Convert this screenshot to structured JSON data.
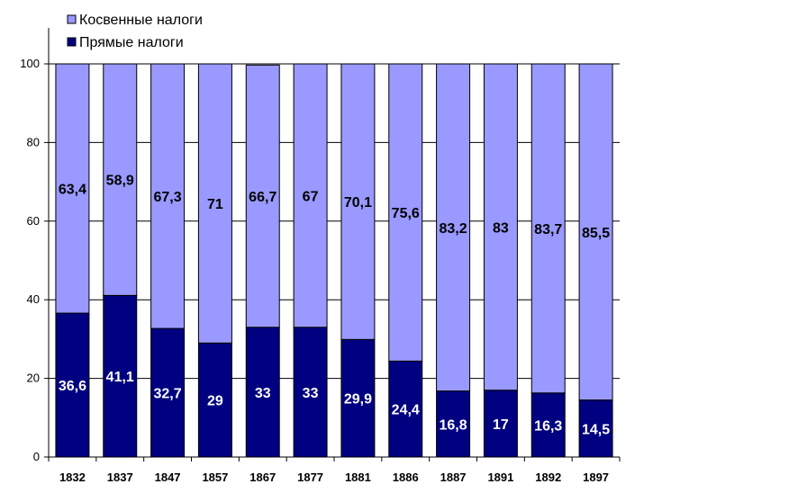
{
  "chart_data": {
    "type": "bar",
    "stacked": true,
    "categories": [
      "1832",
      "1837",
      "1847",
      "1857",
      "1867",
      "1877",
      "1881",
      "1886",
      "1887",
      "1891",
      "1892",
      "1897"
    ],
    "series": [
      {
        "name": "Прямые налоги",
        "color": "#000080",
        "values": [
          36.6,
          41.1,
          32.7,
          29,
          33,
          33,
          29.9,
          24.4,
          16.8,
          17,
          16.3,
          14.5
        ],
        "labels": [
          "36,6",
          "41,1",
          "32,7",
          "29",
          "33",
          "33",
          "29,9",
          "24,4",
          "16,8",
          "17",
          "16,3",
          "14,5"
        ]
      },
      {
        "name": "Косвенные налоги",
        "color": "#9999ff",
        "values": [
          63.4,
          58.9,
          67.3,
          71,
          66.7,
          67,
          70.1,
          75.6,
          83.2,
          83,
          83.7,
          85.5
        ],
        "labels": [
          "63,4",
          "58,9",
          "67,3",
          "71",
          "66,7",
          "67",
          "70,1",
          "75,6",
          "83,2",
          "83",
          "83,7",
          "85,5"
        ]
      }
    ],
    "legend_order": [
      1,
      0
    ],
    "yticks": [
      "0",
      "20",
      "40",
      "60",
      "80",
      "100"
    ],
    "ylim": [
      0,
      100
    ],
    "title": "",
    "xlabel": "",
    "ylabel": "",
    "grid": true,
    "legend_position": "top-left"
  }
}
